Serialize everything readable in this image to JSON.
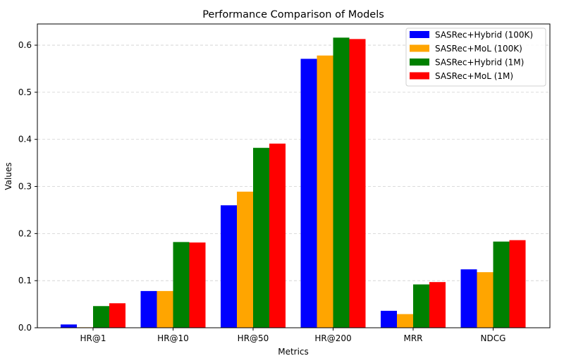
{
  "chart_data": {
    "type": "bar",
    "title": "Performance Comparison of Models",
    "xlabel": "Metrics",
    "ylabel": "Values",
    "ylim": [
      0,
      0.645
    ],
    "yticks": [
      0.0,
      0.1,
      0.2,
      0.3,
      0.4,
      0.5,
      0.6
    ],
    "ytick_labels": [
      "0.0",
      "0.1",
      "0.2",
      "0.3",
      "0.4",
      "0.5",
      "0.6"
    ],
    "grid": "y-dashed",
    "legend_position": "top-right",
    "categories": [
      "HR@1",
      "HR@10",
      "HR@50",
      "HR@200",
      "MRR",
      "NDCG"
    ],
    "series": [
      {
        "name": "SASRec+Hybrid (100K)",
        "color": "#0000ff",
        "values": [
          0.007,
          0.078,
          0.26,
          0.571,
          0.036,
          0.124
        ]
      },
      {
        "name": "SASRec+MoL (100K)",
        "color": "#ffa500",
        "values": [
          0.001,
          0.078,
          0.289,
          0.578,
          0.029,
          0.118
        ]
      },
      {
        "name": "SASRec+Hybrid (1M)",
        "color": "#008000",
        "values": [
          0.046,
          0.182,
          0.382,
          0.616,
          0.092,
          0.183
        ]
      },
      {
        "name": "SASRec+MoL (1M)",
        "color": "#ff0000",
        "values": [
          0.052,
          0.181,
          0.391,
          0.613,
          0.097,
          0.186
        ]
      }
    ]
  }
}
